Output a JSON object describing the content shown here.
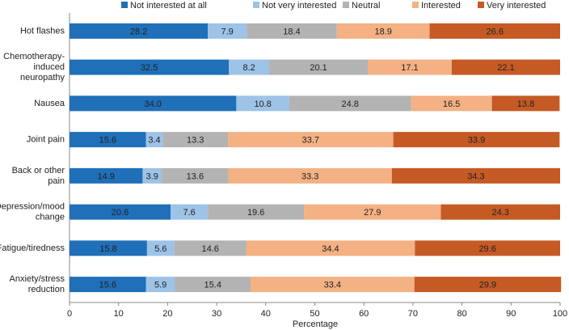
{
  "chart_data": {
    "type": "stacked-bar-horizontal",
    "categories": [
      "Hot flashes",
      "Chemotherapy-\ninduced\nneuropathy",
      "Nausea",
      "Joint pain",
      "Back or other\npain",
      "Depression/mood\nchange",
      "Fatigue/tiredness",
      "Anxiety/stress\nreduction"
    ],
    "series": [
      {
        "name": "Not interested at all",
        "color": "#1f6fb9",
        "values": [
          28.2,
          32.5,
          34.0,
          15.6,
          14.9,
          20.6,
          15.8,
          15.6
        ],
        "value_labels": [
          "28.2",
          "32.5",
          "34.0",
          "15.6",
          "14.9",
          "20.6",
          "15.8",
          "15.6"
        ]
      },
      {
        "name": "Not very interested",
        "color": "#9dc3e6",
        "values": [
          7.9,
          8.2,
          10.8,
          3.4,
          3.9,
          7.6,
          5.6,
          5.9
        ],
        "value_labels": [
          "7.9",
          "8.2",
          "10.8",
          "3.4",
          "3.9",
          "7.6",
          "5.6",
          "5.9"
        ]
      },
      {
        "name": "Neutral",
        "color": "#b3b3b3",
        "values": [
          18.4,
          20.1,
          24.8,
          13.3,
          13.6,
          19.6,
          14.6,
          15.4
        ],
        "value_labels": [
          "18.4",
          "20.1",
          "24.8",
          "13.3",
          "13.6",
          "19.6",
          "14.6",
          "15.4"
        ]
      },
      {
        "name": "Interested",
        "color": "#f4b183",
        "values": [
          18.9,
          17.1,
          16.5,
          33.7,
          33.3,
          27.9,
          34.4,
          33.4
        ],
        "value_labels": [
          "18.9",
          "17.1",
          "16.5",
          "33.7",
          "33.3",
          "27.9",
          "34.4",
          "33.4"
        ]
      },
      {
        "name": "Very interested",
        "color": "#c55a24",
        "values": [
          26.6,
          22.1,
          13.8,
          33.9,
          34.3,
          24.3,
          29.6,
          29.9
        ],
        "value_labels": [
          "26.6",
          "22.1",
          "13.8",
          "33.9",
          "34.3",
          "24.3",
          "29.6",
          "29.9"
        ]
      }
    ],
    "x_label": "Percentage",
    "xlim": [
      0,
      100
    ],
    "xticks": [
      0,
      10,
      20,
      30,
      40,
      50,
      60,
      70,
      80,
      90,
      100
    ],
    "legend": "top"
  }
}
